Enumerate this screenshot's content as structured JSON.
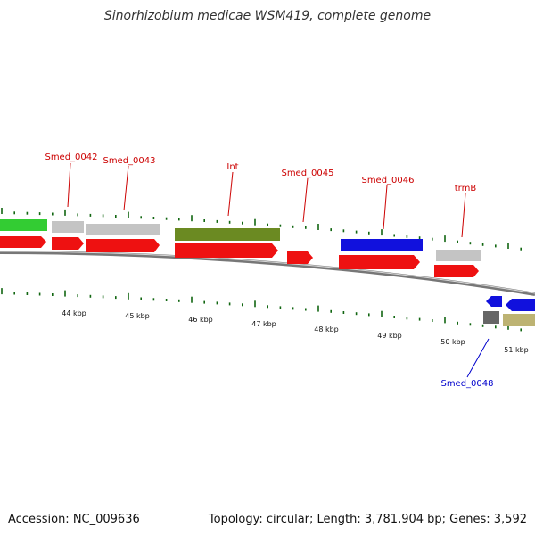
{
  "title": "Sinorhizobium medicae WSM419, complete genome",
  "footer": {
    "accession": "Accession: NC_009636",
    "summary": "Topology: circular; Length: 3,781,904 bp; Genes: 3,592"
  },
  "colors": {
    "forward_label": "#cc0000",
    "reverse_label": "#0000cc",
    "cds_red": "#ee1111",
    "gene_grey": "#c4c4c4",
    "gene_green": "#33cc33",
    "gene_olive": "#6b8a22",
    "gene_blue": "#1111dd",
    "gene_khaki": "#bdb373",
    "gene_darkgrey": "#666666",
    "tick_green": "#116611",
    "backbone": "#888888"
  },
  "kbp_labels": [
    "44 kbp",
    "45 kbp",
    "46 kbp",
    "47 kbp",
    "48 kbp",
    "49 kbp",
    "50 kbp",
    "51 kbp"
  ],
  "gene_labels": [
    {
      "name": "Smed_0042",
      "strand": "forward"
    },
    {
      "name": "Smed_0043",
      "strand": "forward"
    },
    {
      "name": "Int",
      "strand": "forward"
    },
    {
      "name": "Smed_0045",
      "strand": "forward"
    },
    {
      "name": "Smed_0046",
      "strand": "forward"
    },
    {
      "name": "trmB",
      "strand": "forward"
    },
    {
      "name": "Smed_0048",
      "strand": "reverse"
    }
  ]
}
